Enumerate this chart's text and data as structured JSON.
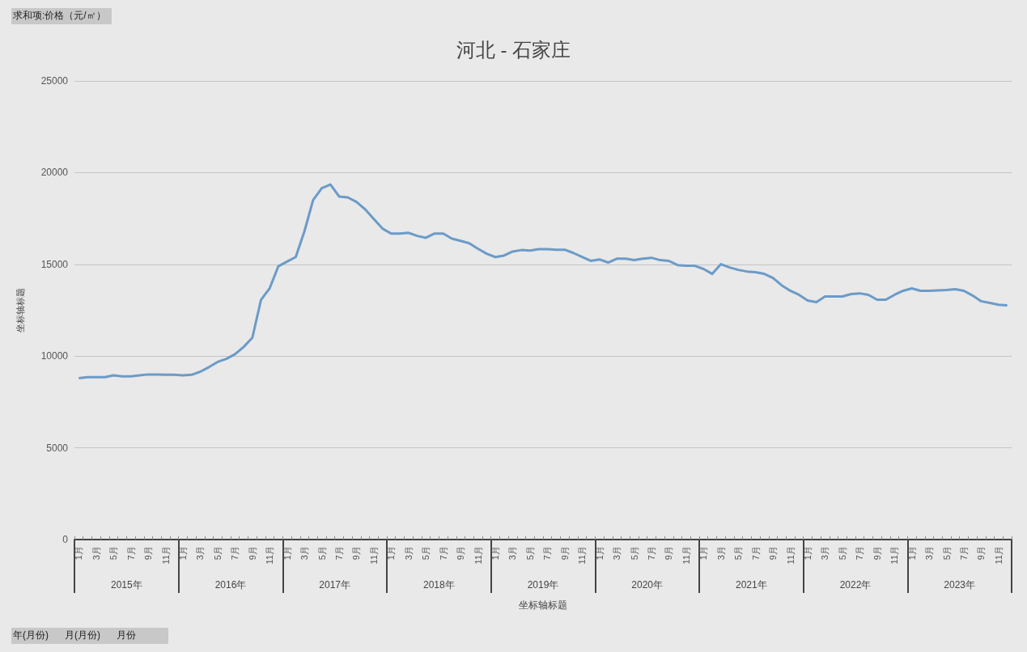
{
  "chart_data": {
    "type": "line",
    "title": "河北 - 石家庄",
    "xlabel": "坐标轴标题",
    "ylabel": "坐标轴标题",
    "annotations": [
      "求和项:价格（元/㎡）",
      "年(月份)",
      "月(月份)",
      "月份",
      "2015年",
      "2016年",
      "2017年",
      "2018年",
      "2019年",
      "2020年",
      "2021年",
      "2022年",
      "2023年"
    ],
    "categories": [
      "1月",
      null,
      "3月",
      null,
      "5月",
      null,
      "7月",
      null,
      "9月",
      null,
      "11月",
      null,
      "1月",
      null,
      "3月",
      null,
      "5月",
      null,
      "7月",
      null,
      "9月",
      null,
      "11月",
      null,
      "1月",
      null,
      "3月",
      null,
      "5月",
      null,
      "7月",
      null,
      "9月",
      null,
      "11月",
      null,
      "1月",
      null,
      "3月",
      null,
      "5月",
      null,
      "7月",
      null,
      "9月",
      null,
      "11月",
      null,
      "1月",
      null,
      "3月",
      null,
      "5月",
      null,
      "7月",
      null,
      "9月",
      null,
      "11月",
      null,
      "1月",
      null,
      "3月",
      null,
      "5月",
      null,
      "7月",
      null,
      "9月",
      null,
      "11月",
      null,
      "1月",
      null,
      "3月",
      null,
      "5月",
      null,
      "7月",
      null,
      "9月",
      null,
      "11月",
      null,
      "1月",
      null,
      "3月",
      null,
      "5月",
      null,
      "7月",
      null,
      "9月",
      null,
      "11月",
      null,
      "1月",
      null,
      "3月",
      null,
      "5月",
      null,
      "7月",
      null,
      "9月",
      null,
      "11月",
      null
    ],
    "series": [
      {
        "color": "#6b9bc8",
        "values": [
          8800,
          8850,
          8850,
          8850,
          8950,
          8900,
          8900,
          8950,
          9000,
          9000,
          8980,
          8980,
          8950,
          8980,
          9150,
          9400,
          9680,
          9850,
          10100,
          10500,
          11000,
          13070,
          13700,
          14900,
          15150,
          15400,
          16800,
          18500,
          19150,
          19350,
          18700,
          18650,
          18400,
          18000,
          17470,
          16950,
          16680,
          16680,
          16720,
          16550,
          16450,
          16680,
          16680,
          16400,
          16280,
          16150,
          15850,
          15580,
          15400,
          15480,
          15700,
          15780,
          15750,
          15830,
          15830,
          15800,
          15800,
          15620,
          15400,
          15190,
          15270,
          15100,
          15310,
          15310,
          15230,
          15310,
          15360,
          15230,
          15190,
          14960,
          14920,
          14920,
          14750,
          14480,
          15010,
          14830,
          14700,
          14610,
          14570,
          14480,
          14260,
          13860,
          13560,
          13340,
          13030,
          12940,
          13250,
          13250,
          13250,
          13380,
          13420,
          13340,
          13070,
          13070,
          13340,
          13560,
          13690,
          13560,
          13560,
          13580,
          13600,
          13650,
          13560,
          13300,
          12990,
          12900,
          12800,
          12760
        ]
      }
    ],
    "ylim": [
      0,
      25000
    ],
    "yticks": [
      0,
      5000,
      10000,
      15000,
      20000,
      25000
    ],
    "grid": "y",
    "marker": "none",
    "line_style": "solid"
  }
}
